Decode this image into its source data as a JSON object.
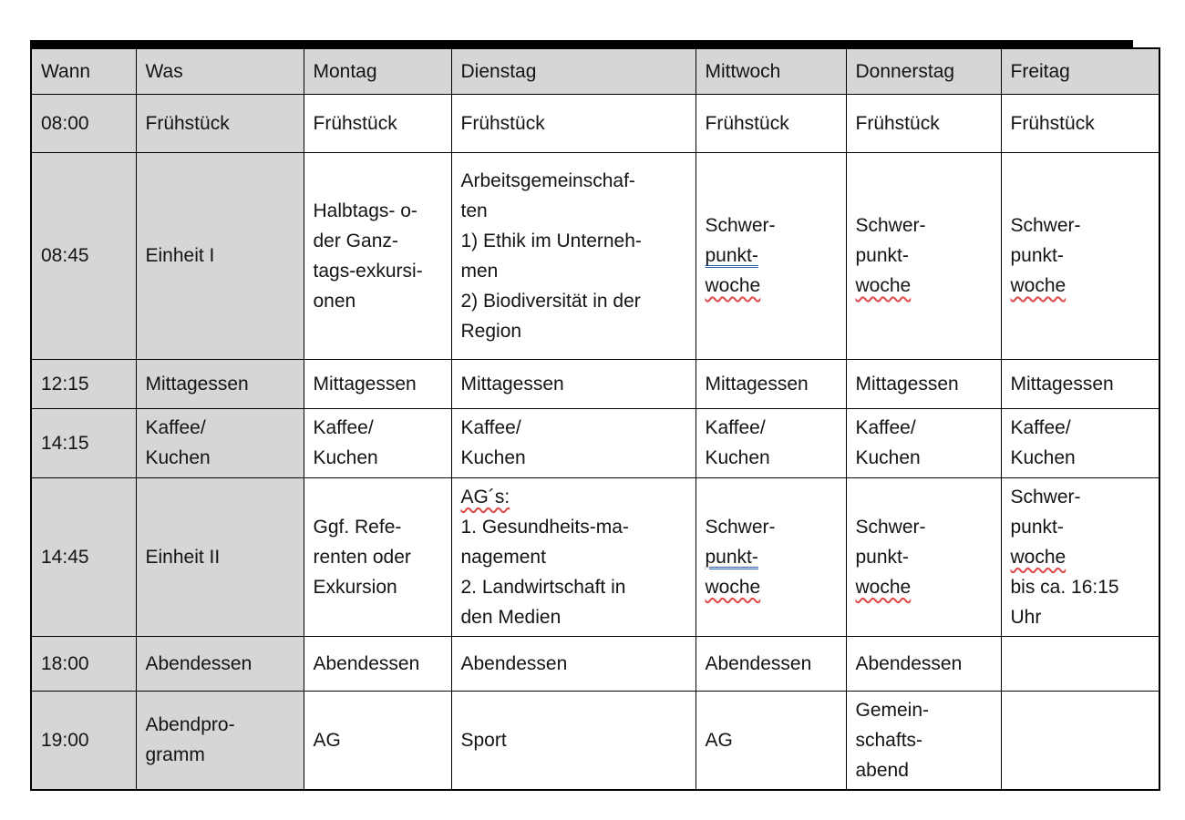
{
  "document": {
    "kind": "weekly-schedule-table",
    "colors": {
      "header_bg": "#d6d6d6",
      "label_column_bg": "#d6d6d6",
      "cell_bg": "#ffffff",
      "border": "#000000",
      "text": "#141414",
      "spellcheck_red": "#e04848",
      "grammar_blue": "#2b5fb0",
      "top_rule": "#000000"
    },
    "table": {
      "columns": [
        {
          "key": "time",
          "label": "Wann"
        },
        {
          "key": "was",
          "label": "Was"
        },
        {
          "key": "montag",
          "label": "Montag"
        },
        {
          "key": "dienstag",
          "label": "Dienstag"
        },
        {
          "key": "mittwoch",
          "label": "Mittwoch"
        },
        {
          "key": "donnerstag",
          "label": "Donnerstag"
        },
        {
          "key": "freitag",
          "label": "Freitag"
        }
      ],
      "rows": [
        {
          "time": "08:00",
          "was": [
            {
              "t": "Frühstück"
            }
          ],
          "montag": [
            {
              "t": "Frühstück"
            }
          ],
          "dienstag": [
            {
              "t": "Frühstück"
            }
          ],
          "mittwoch": [
            {
              "t": "Frühstück"
            }
          ],
          "donnerstag": [
            {
              "t": "Frühstück"
            }
          ],
          "freitag": [
            {
              "t": "Frühstück"
            }
          ]
        },
        {
          "time": "08:45",
          "was": [
            {
              "t": "Einheit I"
            }
          ],
          "montag": [
            {
              "t": "Halbtags- o-"
            },
            {
              "t": "der Ganz-"
            },
            {
              "t": "tags-exkursi-"
            },
            {
              "t": "onen"
            }
          ],
          "dienstag": [
            {
              "t": "Arbeitsgemeinschaf-"
            },
            {
              "t": "ten"
            },
            {
              "t": "1) Ethik im Unterneh-"
            },
            {
              "t": "men"
            },
            {
              "t": "2) Biodiversität in der"
            },
            {
              "t": "Region"
            }
          ],
          "mittwoch": [
            {
              "t": "Schwer-"
            },
            {
              "t": "punkt-",
              "u": "blue"
            },
            {
              "t": "woche",
              "u": "red"
            }
          ],
          "donnerstag": [
            {
              "t": "Schwer-"
            },
            {
              "t": "punkt-"
            },
            {
              "t": "woche",
              "u": "red"
            }
          ],
          "freitag": [
            {
              "t": "Schwer-"
            },
            {
              "t": "punkt-"
            },
            {
              "t": "woche",
              "u": "red"
            }
          ]
        },
        {
          "time": "12:15",
          "was": [
            {
              "t": "Mittagessen"
            }
          ],
          "montag": [
            {
              "t": "Mittagessen"
            }
          ],
          "dienstag": [
            {
              "t": "Mittagessen"
            }
          ],
          "mittwoch": [
            {
              "t": "Mittagessen"
            }
          ],
          "donnerstag": [
            {
              "t": "Mittagessen"
            }
          ],
          "freitag": [
            {
              "t": "Mittagessen"
            }
          ]
        },
        {
          "time": "14:15",
          "was": [
            {
              "t": "Kaffee/"
            },
            {
              "t": "Kuchen"
            }
          ],
          "montag": [
            {
              "t": "Kaffee/"
            },
            {
              "t": "Kuchen"
            }
          ],
          "dienstag": [
            {
              "t": "Kaffee/"
            },
            {
              "t": "Kuchen"
            }
          ],
          "mittwoch": [
            {
              "t": "Kaffee/"
            },
            {
              "t": "Kuchen"
            }
          ],
          "donnerstag": [
            {
              "t": "Kaffee/"
            },
            {
              "t": "Kuchen"
            }
          ],
          "freitag": [
            {
              "t": "Kaffee/"
            },
            {
              "t": "Kuchen"
            }
          ]
        },
        {
          "time": "14:45",
          "was": [
            {
              "t": "Einheit II"
            }
          ],
          "montag": [
            {
              "t": "Ggf. Refe-"
            },
            {
              "t": "renten oder"
            },
            {
              "t": "Exkursion"
            }
          ],
          "dienstag": [
            {
              "t": "AG´s:",
              "u": "red"
            },
            {
              "t": "1. Gesundheits-ma-"
            },
            {
              "t": "nagement"
            },
            {
              "t": "2. Landwirtschaft in"
            },
            {
              "t": "den Medien"
            }
          ],
          "mittwoch": [
            {
              "t": "Schwer-"
            },
            {
              "t": "punkt-",
              "u": "blue"
            },
            {
              "t": "woche",
              "u": "red"
            }
          ],
          "donnerstag": [
            {
              "t": "Schwer-"
            },
            {
              "t": "punkt-"
            },
            {
              "t": "woche",
              "u": "red"
            }
          ],
          "freitag": [
            {
              "t": "Schwer-"
            },
            {
              "t": "punkt-"
            },
            {
              "t": "woche",
              "u": "red"
            },
            {
              "t": "bis ca. 16:15"
            },
            {
              "t": "Uhr"
            }
          ]
        },
        {
          "time": "18:00",
          "was": [
            {
              "t": "Abendessen"
            }
          ],
          "montag": [
            {
              "t": "Abendessen"
            }
          ],
          "dienstag": [
            {
              "t": "Abendessen"
            }
          ],
          "mittwoch": [
            {
              "t": "Abendessen"
            }
          ],
          "donnerstag": [
            {
              "t": "Abendessen"
            }
          ],
          "freitag": []
        },
        {
          "time": "19:00",
          "was": [
            {
              "t": "Abendpro-"
            },
            {
              "t": "gramm"
            }
          ],
          "montag": [
            {
              "t": "AG"
            }
          ],
          "dienstag": [
            {
              "t": "Sport"
            }
          ],
          "mittwoch": [
            {
              "t": "AG"
            }
          ],
          "donnerstag": [
            {
              "t": "Gemein-"
            },
            {
              "t": "schafts-"
            },
            {
              "t": "abend"
            }
          ],
          "freitag": []
        }
      ]
    }
  }
}
